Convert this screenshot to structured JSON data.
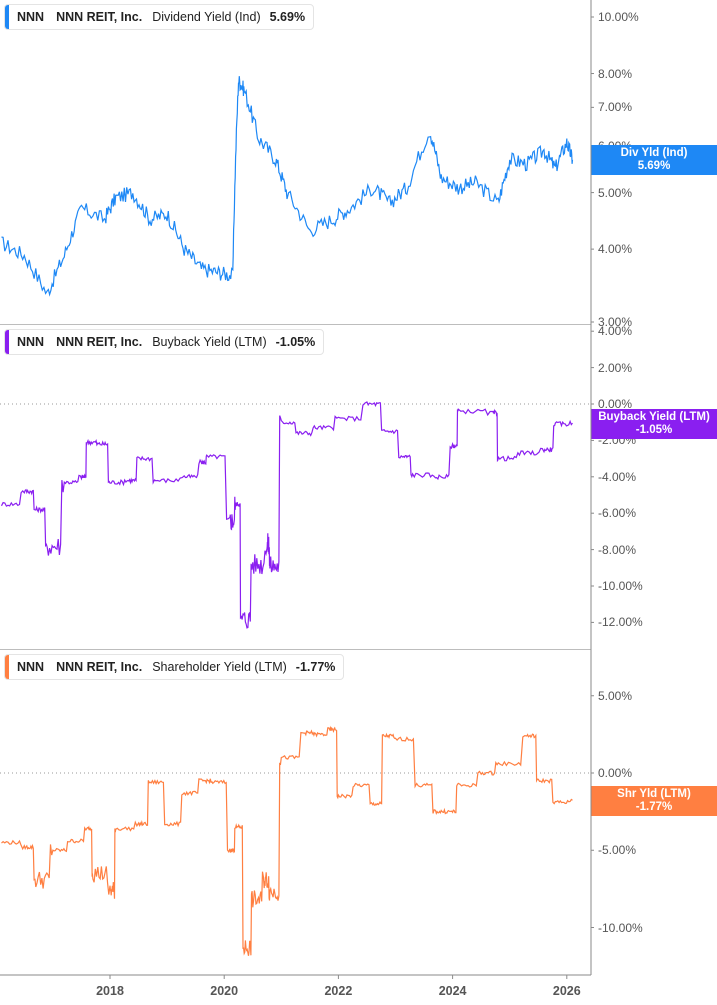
{
  "colors": {
    "dividend": "#1e88f5",
    "buyback": "#8a1ff0",
    "shareholder": "#ff7f41",
    "axis": "#888888",
    "zero_line": "#999999"
  },
  "panels": [
    {
      "id": "dividend",
      "legend": {
        "ticker": "NNN",
        "company": "NNN REIT, Inc.",
        "metric": "Dividend Yield (Ind)",
        "value": "5.69%"
      },
      "tag": {
        "label": "Div Yld (Ind)",
        "value": "5.69%"
      },
      "ticks": [
        "10.00%",
        "8.00%",
        "7.00%",
        "6.00%",
        "5.00%",
        "4.00%",
        "3.00%"
      ]
    },
    {
      "id": "buyback",
      "legend": {
        "ticker": "NNN",
        "company": "NNN REIT, Inc.",
        "metric": "Buyback Yield (LTM)",
        "value": "-1.05%"
      },
      "tag": {
        "label": "Buyback Yield (LTM)",
        "value": "-1.05%"
      },
      "ticks": [
        "4.00%",
        "2.00%",
        "0.00%",
        "-2.00%",
        "-4.00%",
        "-6.00%",
        "-8.00%",
        "-10.00%",
        "-12.00%"
      ]
    },
    {
      "id": "shareholder",
      "legend": {
        "ticker": "NNN",
        "company": "NNN REIT, Inc.",
        "metric": "Shareholder Yield (LTM)",
        "value": "-1.77%"
      },
      "tag": {
        "label": "Shr Yld (LTM)",
        "value": "-1.77%"
      },
      "ticks": [
        "5.00%",
        "0.00%",
        "-5.00%",
        "-10.00%"
      ]
    }
  ],
  "x_axis": {
    "labels": [
      "2018",
      "2020",
      "2022",
      "2024",
      "2026"
    ]
  },
  "chart_data": [
    {
      "type": "line",
      "title": "NNN NNN REIT, Inc. Dividend Yield (Ind) 5.69%",
      "ylabel": "Dividend Yield (Ind) %",
      "yscale": "log",
      "ylim": [
        2.9,
        10.5
      ],
      "yticks": [
        3,
        4,
        5,
        6,
        7,
        8,
        10
      ],
      "x": [
        2016.1,
        2016.5,
        2016.9,
        2017.2,
        2017.5,
        2017.9,
        2018.1,
        2018.4,
        2018.7,
        2019.0,
        2019.3,
        2019.6,
        2019.9,
        2020.15,
        2020.25,
        2020.35,
        2020.6,
        2020.9,
        2021.1,
        2021.5,
        2021.9,
        2022.2,
        2022.6,
        2022.9,
        2023.2,
        2023.6,
        2023.8,
        2024.1,
        2024.4,
        2024.8,
        2025.0,
        2025.3,
        2025.6,
        2025.8,
        2026.0,
        2026.1
      ],
      "values": [
        4.1,
        3.9,
        3.35,
        3.9,
        4.7,
        4.5,
        4.9,
        5.0,
        4.5,
        4.6,
        4.0,
        3.7,
        3.65,
        3.6,
        7.8,
        7.5,
        6.2,
        5.7,
        5.0,
        4.3,
        4.5,
        4.7,
        5.1,
        4.8,
        5.1,
        6.4,
        5.3,
        5.1,
        5.2,
        4.8,
        5.7,
        5.6,
        5.9,
        5.5,
        6.1,
        5.69
      ],
      "last_value": 5.69
    },
    {
      "type": "line",
      "title": "NNN NNN REIT, Inc. Buyback Yield (LTM) -1.05%",
      "ylabel": "Buyback Yield (LTM) %",
      "ylim": [
        -12.5,
        4.2
      ],
      "yticks": [
        4,
        2,
        0,
        -2,
        -4,
        -6,
        -8,
        -10,
        -12
      ],
      "reference_line": 0,
      "x": [
        2016.1,
        2016.5,
        2016.7,
        2016.9,
        2017.2,
        2017.5,
        2017.6,
        2017.8,
        2018.0,
        2018.3,
        2018.5,
        2018.8,
        2019.3,
        2019.6,
        2019.7,
        2020.1,
        2020.2,
        2020.3,
        2020.5,
        2020.75,
        2020.8,
        2021.0,
        2021.3,
        2021.6,
        2022.0,
        2022.5,
        2022.8,
        2023.1,
        2023.3,
        2023.7,
        2024.0,
        2024.1,
        2024.7,
        2024.8,
        2025.2,
        2025.6,
        2025.8,
        2026.1
      ],
      "values": [
        -5.5,
        -4.8,
        -5.8,
        -7.8,
        -4.3,
        -4.0,
        -2.1,
        -2.2,
        -4.3,
        -4.2,
        -3.0,
        -4.2,
        -4.0,
        -3.2,
        -2.9,
        -6.4,
        -5.5,
        -11.8,
        -8.8,
        -7.7,
        -8.9,
        -1.0,
        -1.6,
        -1.3,
        -0.8,
        0.0,
        -1.5,
        -2.9,
        -3.9,
        -4.0,
        -2.3,
        -0.4,
        -0.5,
        -3.0,
        -2.7,
        -2.5,
        -1.1,
        -1.05
      ],
      "last_value": -1.05
    },
    {
      "type": "line",
      "title": "NNN NNN REIT, Inc. Shareholder Yield (LTM) -1.77%",
      "ylabel": "Shareholder Yield (LTM) %",
      "ylim": [
        -13.0,
        7.5
      ],
      "yticks": [
        5,
        0,
        -5,
        -10
      ],
      "reference_line": 0,
      "x": [
        2016.1,
        2016.5,
        2016.7,
        2017.0,
        2017.3,
        2017.6,
        2017.7,
        2018.0,
        2018.1,
        2018.5,
        2018.7,
        2019.0,
        2019.3,
        2019.6,
        2019.8,
        2020.1,
        2020.2,
        2020.35,
        2020.5,
        2020.7,
        2020.8,
        2021.0,
        2021.4,
        2021.6,
        2021.85,
        2022.0,
        2022.3,
        2022.6,
        2022.8,
        2023.0,
        2023.4,
        2023.7,
        2023.9,
        2024.1,
        2024.5,
        2024.8,
        2025.3,
        2025.5,
        2025.8,
        2026.1
      ],
      "values": [
        -4.5,
        -4.8,
        -6.9,
        -5.0,
        -4.4,
        -3.6,
        -6.5,
        -7.6,
        -3.6,
        -3.3,
        -0.6,
        -3.3,
        -1.3,
        -0.5,
        -0.6,
        -5.0,
        -3.5,
        -11.3,
        -8.2,
        -6.9,
        -7.7,
        1.0,
        2.6,
        2.5,
        2.8,
        -1.5,
        -0.8,
        -2.0,
        2.4,
        2.2,
        -0.8,
        -2.5,
        -2.5,
        -0.8,
        0.0,
        0.6,
        2.4,
        -0.5,
        -1.9,
        -1.77
      ],
      "last_value": -1.77
    }
  ]
}
